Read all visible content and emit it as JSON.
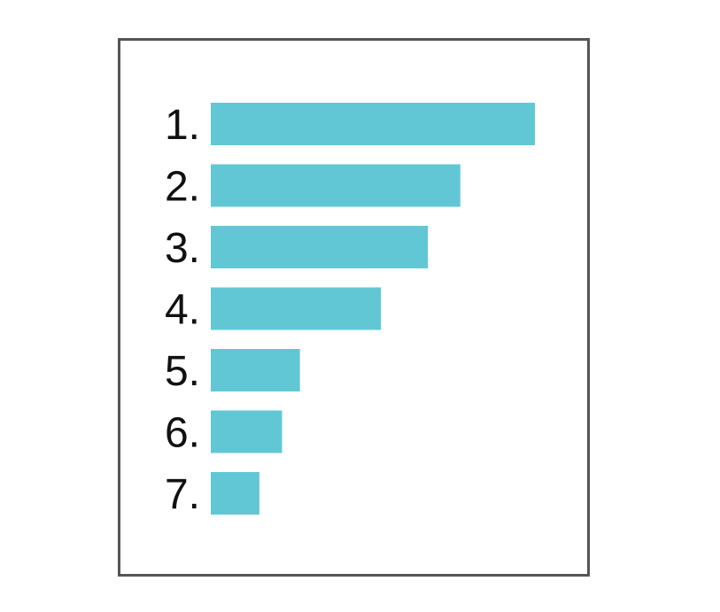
{
  "chart_data": {
    "type": "bar",
    "orientation": "horizontal",
    "categories": [
      "1.",
      "2.",
      "3.",
      "4.",
      "5.",
      "6.",
      "7."
    ],
    "values": [
      100,
      77,
      67,
      52.5,
      27.5,
      22,
      15
    ],
    "xlim": [
      0,
      100
    ],
    "grid": false,
    "legend": "none",
    "title": "",
    "xlabel": "",
    "ylabel": ""
  },
  "colors": {
    "bar": "#62c7d5",
    "frame_border": "#555555",
    "label_text": "#111111",
    "background": "#ffffff"
  }
}
